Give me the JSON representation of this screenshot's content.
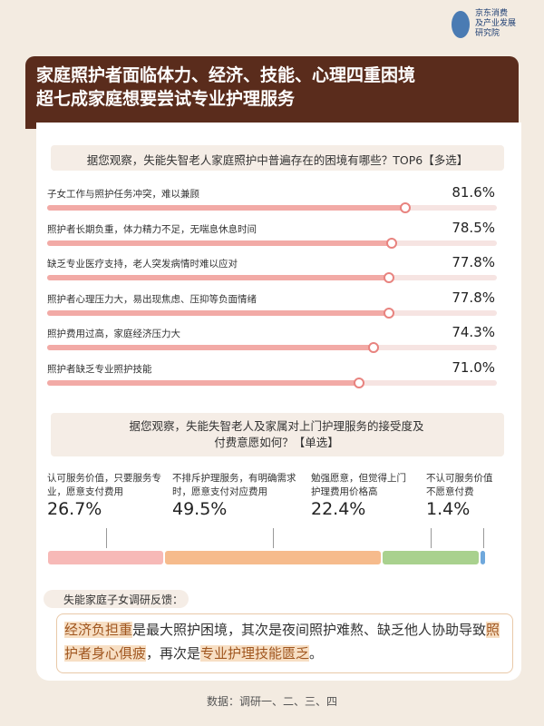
{
  "logo": [
    "京东消费",
    "及产业发展",
    "研究院"
  ],
  "header": {
    "title_lines": [
      "家庭照护者面临体力、经济、技能、心理四重困境",
      "超七成家庭想要尝试专业护理服务"
    ]
  },
  "chart_data": [
    {
      "type": "hbar",
      "title": "据您观察，失能失智老人家庭照护中普遍存在的困境有哪些？TOP6【多选】",
      "categories": [
        "子女工作与照护任务冲突，难以兼顾",
        "照护者长期负重，体力精力不足，无喘息休息时间",
        "缺乏专业医疗支持，老人突发病情时难以应对",
        "照护者心理压力大，易出现焦虑、压抑等负面情绪",
        "照护费用过高，家庭经济压力大",
        "照护者缺乏专业照护技能"
      ],
      "values": [
        81.6,
        78.5,
        77.8,
        77.8,
        74.3,
        71.0
      ],
      "value_labels": [
        "81.6%",
        "78.5%",
        "77.8%",
        "77.8%",
        "74.3%",
        "71.0%"
      ],
      "color": "#f2aaa6",
      "knob_color": "#e8837f",
      "xlim": [
        0,
        100
      ]
    },
    {
      "type": "stacked_bar",
      "title": "据您观察，失能失智老人及家属对上门护理服务的接受度及付费意愿如何？【单选】",
      "categories": [
        "认可服务价值，只要服务专业，愿意支付费用",
        "不排斥护理服务，有明确需求时，愿意支付对应费用",
        "勉强愿意，但觉得上门护理费用价格高",
        "不认可服务价值不愿意付费"
      ],
      "values": [
        26.7,
        49.5,
        22.4,
        1.4
      ],
      "value_labels": [
        "26.7%",
        "49.5%",
        "22.4%",
        "1.4%"
      ],
      "colors": [
        "#f7b9b7",
        "#f6bb8c",
        "#a9d18e",
        "#6fa8dc"
      ],
      "xlim": [
        0,
        100
      ]
    }
  ],
  "feedback": {
    "label": "失能家庭子女调研反馈：",
    "segments": [
      {
        "text": "经济负担重",
        "highlight": true
      },
      {
        "text": "是最大照护困境，其次是夜间照护难熬、缺乏他人协助导致",
        "highlight": false
      },
      {
        "text": "照护者身心俱疲",
        "highlight": true
      },
      {
        "text": "，再次是",
        "highlight": false
      },
      {
        "text": "专业护理技能匮乏",
        "highlight": true
      },
      {
        "text": "。",
        "highlight": false
      }
    ]
  },
  "footer": "数据：调研一、二、三、四"
}
